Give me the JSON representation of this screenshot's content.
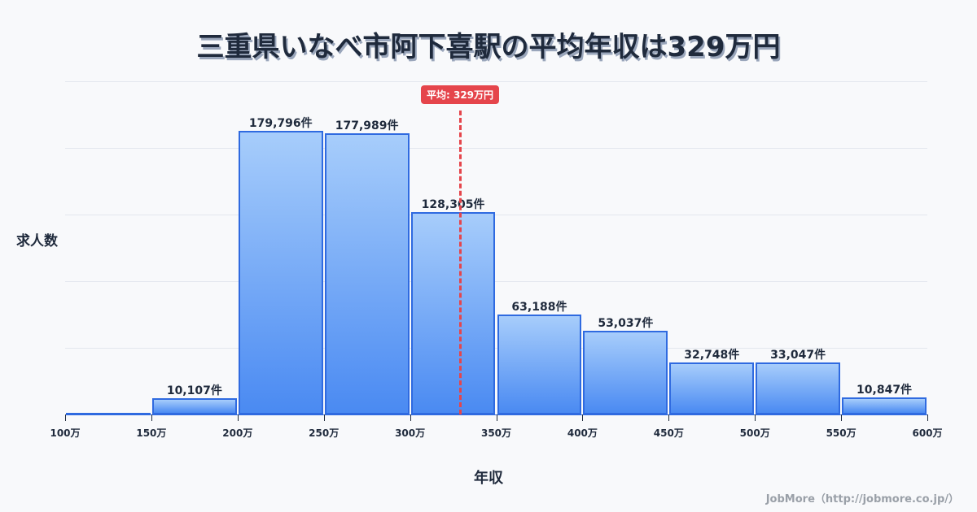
{
  "chart_data": {
    "type": "bar",
    "title": "三重県いなべ市阿下喜駅の平均年収は329万円",
    "xlabel": "年収",
    "ylabel": "求人数",
    "categories": [
      "100万-150万",
      "150万-200万",
      "200万-250万",
      "250万-300万",
      "300万-350万",
      "350万-400万",
      "400万-450万",
      "450万-500万",
      "500万-550万",
      "550万-600万"
    ],
    "values": [
      0,
      10107,
      179796,
      177989,
      128305,
      63188,
      53037,
      32748,
      33047,
      10847
    ],
    "value_labels": [
      "",
      "10,107件",
      "179,796件",
      "177,989件",
      "128,305件",
      "63,188件",
      "53,037件",
      "32,748件",
      "33,047件",
      "10,847件"
    ],
    "x_ticks": [
      "100万",
      "150万",
      "200万",
      "250万",
      "300万",
      "350万",
      "400万",
      "450万",
      "500万",
      "550万",
      "600万"
    ],
    "xlim": [
      100,
      600
    ],
    "ylim": [
      0,
      211000
    ],
    "grid": true,
    "mean": {
      "value": 329,
      "label": "平均: 329万円",
      "color": "#e5454b"
    },
    "bar_color": "#4a8af2",
    "bar_border_color": "#2f6ae0"
  },
  "credit": "JobMore（http://jobmore.co.jp/）"
}
